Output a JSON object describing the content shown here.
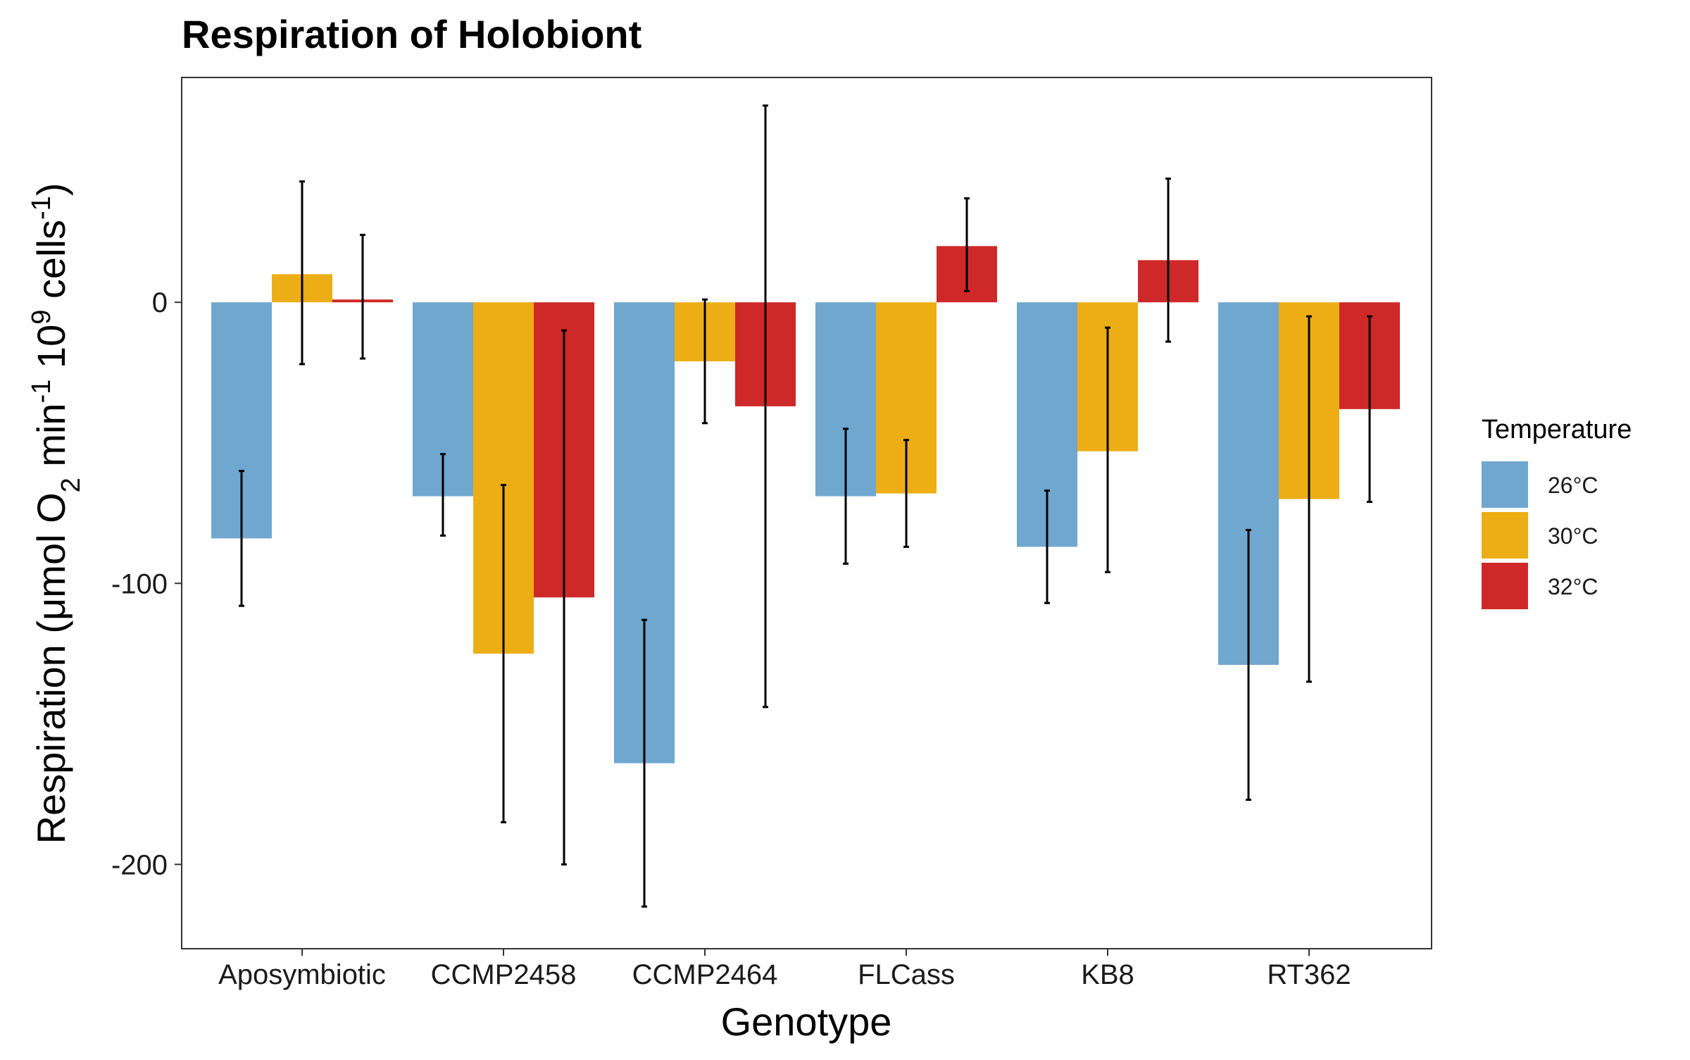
{
  "chart_data": {
    "type": "bar",
    "title": "Respiration of Holobiont",
    "xlabel": "Genotype",
    "ylabel_parts": {
      "main": "Respiration (μmol O",
      "sub": "2",
      "mid": " min",
      "sup1": "-1",
      "mid2": " 10",
      "sup2": "9",
      "end": " cells",
      "sup3": "-1",
      "close": ")"
    },
    "categories": [
      "Aposymbiotic",
      "CCMP2458",
      "CCMP2464",
      "FLCass",
      "KB8",
      "RT362"
    ],
    "series": [
      {
        "name": "26°C",
        "color": "#6fa7cf",
        "values": [
          -84,
          -69,
          -164,
          -69,
          -87,
          -129
        ],
        "error_low": [
          -108,
          -83,
          -215,
          -93,
          -107,
          -177
        ],
        "error_high": [
          -60,
          -54,
          -113,
          -45,
          -67,
          -81
        ]
      },
      {
        "name": "30°C",
        "color": "#edae15",
        "values": [
          10,
          -125,
          -21,
          -68,
          -53,
          -70
        ],
        "error_low": [
          -22,
          -185,
          -43,
          -87,
          -96,
          -135
        ],
        "error_high": [
          43,
          -65,
          1,
          -49,
          -9,
          -5
        ]
      },
      {
        "name": "32°C",
        "color": "#cf2828",
        "values": [
          1,
          -105,
          -37,
          20,
          15,
          -38
        ],
        "error_low": [
          -20,
          -200,
          -144,
          4,
          -14,
          -71
        ],
        "error_high": [
          24,
          -10,
          70,
          37,
          44,
          -5
        ]
      }
    ],
    "yticks": [
      0,
      -100,
      -200
    ],
    "ylim": [
      -230,
      80
    ],
    "legend": {
      "title": "Temperature",
      "position": "right"
    },
    "grid": false
  }
}
